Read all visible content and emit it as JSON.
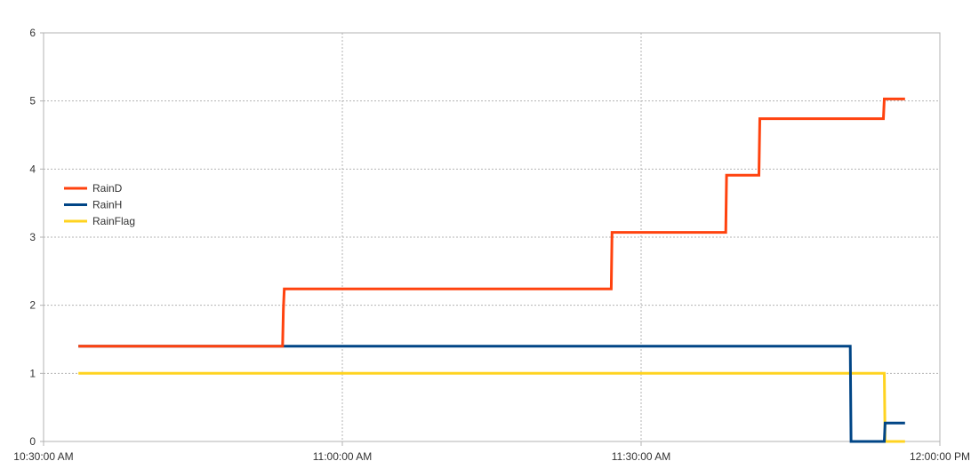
{
  "chart_data": {
    "type": "line",
    "title": "",
    "xlabel": "",
    "ylabel": "",
    "x_axis": {
      "kind": "time",
      "min": "10:30:00 AM",
      "max": "12:00:00 PM",
      "ticks": [
        "10:30:00 AM",
        "11:00:00 AM",
        "11:30:00 AM",
        "12:00:00 PM"
      ]
    },
    "ylim": [
      0,
      6
    ],
    "y_ticks": [
      "0",
      "1",
      "2",
      "3",
      "4",
      "5",
      "6"
    ],
    "grid": true,
    "legend_position": "left-middle",
    "series": [
      {
        "name": "RainD",
        "color": "#ff420e",
        "step": true,
        "points": [
          [
            "10:33:30 AM",
            1.4
          ],
          [
            "10:54:00 AM",
            1.4
          ],
          [
            "10:54:05 AM",
            1.95
          ],
          [
            "10:54:10 AM",
            2.24
          ],
          [
            "11:27:00 AM",
            2.24
          ],
          [
            "11:27:05 AM",
            3.07
          ],
          [
            "11:38:30 AM",
            3.07
          ],
          [
            "11:38:35 AM",
            3.91
          ],
          [
            "11:41:50 AM",
            3.91
          ],
          [
            "11:41:55 AM",
            4.74
          ],
          [
            "11:54:20 AM",
            4.74
          ],
          [
            "11:54:25 AM",
            5.03
          ],
          [
            "11:56:30 AM",
            5.03
          ]
        ]
      },
      {
        "name": "RainH",
        "color": "#004586",
        "step": true,
        "points": [
          [
            "10:33:30 AM",
            1.4
          ],
          [
            "11:21:00 AM",
            1.4
          ],
          [
            "11:51:00 AM",
            1.4
          ],
          [
            "11:51:05 AM",
            0
          ],
          [
            "11:54:25 AM",
            0
          ],
          [
            "11:54:30 AM",
            0.27
          ],
          [
            "11:56:30 AM",
            0.27
          ]
        ]
      },
      {
        "name": "RainFlag",
        "color": "#ffd320",
        "step": true,
        "points": [
          [
            "10:33:30 AM",
            1
          ],
          [
            "11:54:25 AM",
            1
          ],
          [
            "11:54:30 AM",
            0
          ],
          [
            "11:56:30 AM",
            0
          ]
        ]
      }
    ]
  }
}
